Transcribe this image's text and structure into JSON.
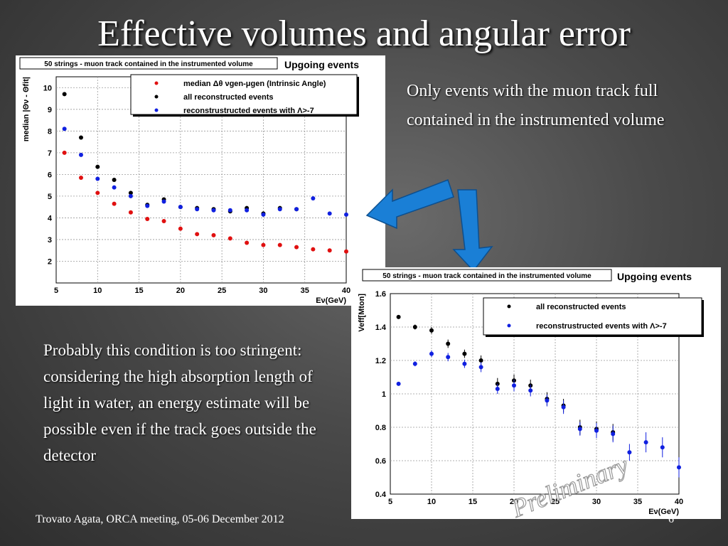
{
  "slide": {
    "title": "Effective volumes and angular error",
    "text_top": "Only events with the muon track full contained in the instrumented volume",
    "text_bottom": "Probably this condition is too stringent: considering the high absorption length of light in water, an energy estimate will be possible even if the track goes outside the detector",
    "footer": "Trovato Agata, ORCA meeting, 05-06 December 2012",
    "page_number": "6",
    "watermark": "Preliminary"
  },
  "colors": {
    "red": "#e01010",
    "black": "#000000",
    "blue": "#1020e0",
    "arrow": "#1a7fd6"
  },
  "chart_data": [
    {
      "type": "scatter",
      "banner": "50 strings - muon track contained in the instrumented volume",
      "subtitle": "Upgoing events",
      "ylabel": "median |Θν - Θfit|",
      "xlabel": "Eν(GeV)",
      "xlim": [
        5,
        40
      ],
      "ylim": [
        1,
        10.5
      ],
      "xticks": [
        5,
        10,
        15,
        20,
        25,
        30,
        35,
        40
      ],
      "yticks": [
        2,
        3,
        4,
        5,
        6,
        7,
        8,
        9,
        10
      ],
      "grid": true,
      "legend_position": "top-right",
      "series": [
        {
          "name": "median Δθ νgen-μgen (Intrinsic Angle)",
          "color": "red",
          "x": [
            6,
            8,
            10,
            12,
            14,
            16,
            18,
            20,
            22,
            24,
            26,
            28,
            30,
            32,
            34,
            36,
            38,
            40
          ],
          "y": [
            7.0,
            5.85,
            5.15,
            4.65,
            4.25,
            3.95,
            3.85,
            3.5,
            3.25,
            3.2,
            3.05,
            2.85,
            2.75,
            2.75,
            2.65,
            2.55,
            2.5,
            2.45
          ]
        },
        {
          "name": "all reconstructed events",
          "color": "black",
          "x": [
            6,
            8,
            10,
            12,
            14,
            16,
            18,
            20,
            22,
            24,
            26,
            28,
            30,
            32,
            34
          ],
          "y": [
            9.7,
            7.7,
            6.35,
            5.75,
            5.15,
            4.6,
            4.85,
            4.5,
            4.45,
            4.4,
            4.3,
            4.45,
            4.2,
            4.45,
            4.4
          ]
        },
        {
          "name": "reconstrustructed events with Λ>-7",
          "color": "blue",
          "x": [
            6,
            8,
            10,
            12,
            14,
            16,
            18,
            20,
            22,
            24,
            26,
            28,
            30,
            32,
            34,
            36,
            38,
            40
          ],
          "y": [
            8.1,
            6.9,
            5.8,
            5.4,
            5.0,
            4.55,
            4.75,
            4.5,
            4.4,
            4.35,
            4.35,
            4.35,
            4.15,
            4.4,
            4.4,
            4.9,
            4.2,
            4.15
          ]
        }
      ]
    },
    {
      "type": "scatter",
      "banner": "50 strings - muon track contained in the instrumented volume",
      "subtitle": "Upgoing events",
      "ylabel": "Veff[Mton]",
      "xlabel": "Eν(GeV)",
      "xlim": [
        5,
        40
      ],
      "ylim": [
        0.4,
        1.6
      ],
      "xticks": [
        5,
        10,
        15,
        20,
        25,
        30,
        35,
        40
      ],
      "yticks": [
        0.4,
        0.6,
        0.8,
        1,
        1.2,
        1.4,
        1.6
      ],
      "ytick_labels": [
        "0.4",
        "0.6",
        "0.8",
        "1",
        "1.2",
        "1.4",
        "1.6"
      ],
      "grid": true,
      "legend_position": "top-right",
      "series": [
        {
          "name": "all reconstructed events",
          "color": "black",
          "x": [
            6,
            8,
            10,
            12,
            14,
            16,
            18,
            20,
            22,
            24,
            26,
            28,
            30,
            32
          ],
          "y": [
            1.46,
            1.4,
            1.38,
            1.3,
            1.24,
            1.2,
            1.06,
            1.08,
            1.05,
            0.97,
            0.93,
            0.8,
            0.79,
            0.77
          ],
          "err": [
            0.01,
            0.015,
            0.02,
            0.025,
            0.025,
            0.03,
            0.035,
            0.035,
            0.035,
            0.04,
            0.04,
            0.045,
            0.045,
            0.05
          ]
        },
        {
          "name": "reconstrustructed events with Λ>-7",
          "color": "blue",
          "x": [
            6,
            8,
            10,
            12,
            14,
            16,
            18,
            20,
            22,
            24,
            26,
            28,
            30,
            32,
            34,
            36,
            38,
            40
          ],
          "y": [
            1.06,
            1.18,
            1.24,
            1.22,
            1.18,
            1.16,
            1.03,
            1.05,
            1.02,
            0.96,
            0.92,
            0.79,
            0.78,
            0.76,
            0.65,
            0.71,
            0.68,
            0.56
          ],
          "err": [
            0.005,
            0.015,
            0.02,
            0.025,
            0.025,
            0.03,
            0.03,
            0.035,
            0.035,
            0.035,
            0.04,
            0.04,
            0.045,
            0.05,
            0.05,
            0.06,
            0.06,
            0.06
          ]
        }
      ]
    }
  ]
}
